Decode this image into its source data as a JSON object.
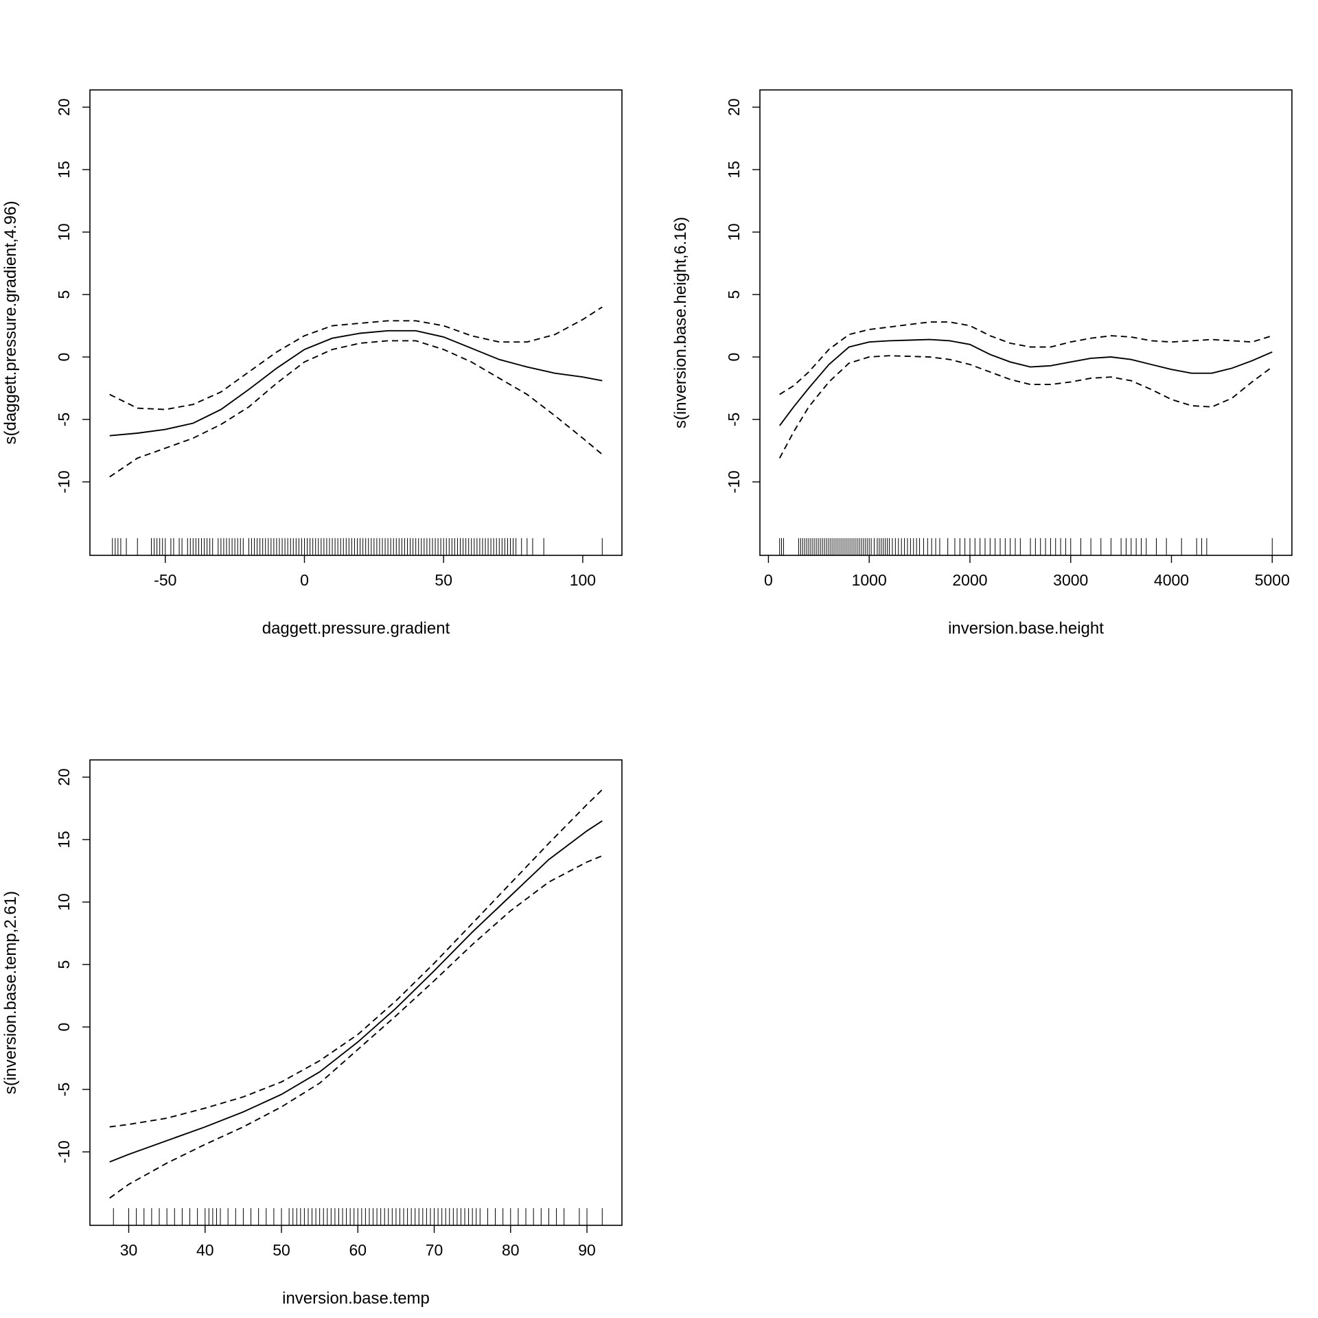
{
  "chart_data": [
    {
      "type": "line",
      "xlabel": "daggett.pressure.gradient",
      "ylabel": "s(daggett.pressure.gradient,4.96)",
      "xlim": [
        -70,
        107
      ],
      "ylim": [
        -14.5,
        20
      ],
      "xticks": [
        -50,
        0,
        50,
        100
      ],
      "xtick_labels": [
        "-50",
        "0",
        "50",
        "100"
      ],
      "yticks": [
        -10,
        -5,
        0,
        5,
        10,
        15,
        20
      ],
      "ytick_labels": [
        "-10",
        "-5",
        "0",
        "5",
        "10",
        "15",
        "20"
      ],
      "grid": false,
      "series": [
        {
          "style": "solid",
          "x": [
            -70,
            -60,
            -50,
            -40,
            -30,
            -20,
            -10,
            0,
            10,
            20,
            30,
            40,
            50,
            60,
            70,
            80,
            90,
            100,
            107
          ],
          "y": [
            -6.3,
            -6.1,
            -5.8,
            -5.3,
            -4.2,
            -2.6,
            -0.9,
            0.6,
            1.5,
            1.9,
            2.1,
            2.1,
            1.6,
            0.7,
            -0.2,
            -0.8,
            -1.3,
            -1.6,
            -1.9
          ]
        },
        {
          "style": "dashed",
          "x": [
            -70,
            -60,
            -50,
            -40,
            -30,
            -20,
            -10,
            0,
            10,
            20,
            30,
            40,
            50,
            60,
            70,
            80,
            90,
            100,
            107
          ],
          "y": [
            -3.0,
            -4.1,
            -4.2,
            -3.8,
            -2.8,
            -1.2,
            0.4,
            1.7,
            2.5,
            2.7,
            2.9,
            2.9,
            2.5,
            1.7,
            1.2,
            1.2,
            1.8,
            3.0,
            4.0
          ]
        },
        {
          "style": "dashed",
          "x": [
            -70,
            -60,
            -50,
            -40,
            -30,
            -20,
            -10,
            0,
            10,
            20,
            30,
            40,
            50,
            60,
            70,
            80,
            90,
            100,
            107
          ],
          "y": [
            -9.6,
            -8.1,
            -7.3,
            -6.5,
            -5.4,
            -4.0,
            -2.1,
            -0.4,
            0.6,
            1.1,
            1.3,
            1.3,
            0.6,
            -0.4,
            -1.7,
            -3.0,
            -4.7,
            -6.5,
            -7.8
          ]
        }
      ],
      "rug": [
        -69,
        -68,
        -67,
        -66,
        -64,
        -60,
        -55,
        -54,
        -53,
        -52,
        -51,
        -50,
        -48,
        -47,
        -45,
        -44,
        -42,
        -41,
        -40,
        -39,
        -38,
        -37,
        -36,
        -35,
        -34,
        -33,
        -31,
        -30,
        -29,
        -28,
        -27,
        -26,
        -25,
        -24,
        -23,
        -22,
        -20,
        -19,
        -18,
        -17,
        -16,
        -15,
        -14,
        -13,
        -12,
        -11,
        -10,
        -9,
        -8,
        -7,
        -6,
        -5,
        -4,
        -3,
        -2,
        -1,
        0,
        1,
        2,
        3,
        4,
        5,
        6,
        7,
        8,
        9,
        10,
        11,
        12,
        13,
        14,
        15,
        16,
        17,
        18,
        19,
        20,
        21,
        22,
        23,
        24,
        25,
        26,
        27,
        28,
        29,
        30,
        31,
        32,
        33,
        34,
        35,
        36,
        37,
        38,
        39,
        40,
        41,
        42,
        43,
        44,
        45,
        46,
        47,
        48,
        49,
        50,
        51,
        52,
        53,
        54,
        55,
        56,
        57,
        58,
        59,
        60,
        61,
        62,
        63,
        64,
        65,
        66,
        67,
        68,
        69,
        70,
        71,
        72,
        73,
        74,
        75,
        76,
        78,
        80,
        82,
        86,
        107
      ]
    },
    {
      "type": "line",
      "xlabel": "inversion.base.height",
      "ylabel": "s(inversion.base.height,6.16)",
      "xlim": [
        111,
        5000
      ],
      "ylim": [
        -14.5,
        20
      ],
      "xticks": [
        0,
        1000,
        2000,
        3000,
        4000,
        5000
      ],
      "xtick_labels": [
        "0",
        "1000",
        "2000",
        "3000",
        "4000",
        "5000"
      ],
      "yticks": [
        -10,
        -5,
        0,
        5,
        10,
        15,
        20
      ],
      "ytick_labels": [
        "-10",
        "-5",
        "0",
        "5",
        "10",
        "15",
        "20"
      ],
      "grid": false,
      "series": [
        {
          "style": "solid",
          "x": [
            111,
            250,
            400,
            600,
            800,
            1000,
            1200,
            1400,
            1600,
            1800,
            2000,
            2200,
            2400,
            2600,
            2800,
            3000,
            3200,
            3400,
            3600,
            3800,
            4000,
            4200,
            4400,
            4600,
            4800,
            5000
          ],
          "y": [
            -5.5,
            -4.0,
            -2.5,
            -0.6,
            0.8,
            1.2,
            1.3,
            1.35,
            1.4,
            1.3,
            1.0,
            0.2,
            -0.4,
            -0.8,
            -0.7,
            -0.4,
            -0.1,
            0.0,
            -0.2,
            -0.6,
            -1.0,
            -1.3,
            -1.3,
            -0.9,
            -0.3,
            0.4
          ]
        },
        {
          "style": "dashed",
          "x": [
            111,
            250,
            400,
            600,
            800,
            1000,
            1200,
            1400,
            1600,
            1800,
            2000,
            2200,
            2400,
            2600,
            2800,
            3000,
            3200,
            3400,
            3600,
            3800,
            4000,
            4200,
            4400,
            4600,
            4800,
            5000
          ],
          "y": [
            -3.0,
            -2.3,
            -1.2,
            0.6,
            1.8,
            2.2,
            2.4,
            2.6,
            2.8,
            2.8,
            2.5,
            1.7,
            1.1,
            0.8,
            0.8,
            1.2,
            1.5,
            1.7,
            1.6,
            1.3,
            1.2,
            1.3,
            1.4,
            1.3,
            1.2,
            1.7
          ]
        },
        {
          "style": "dashed",
          "x": [
            111,
            250,
            400,
            600,
            800,
            1000,
            1200,
            1400,
            1600,
            1800,
            2000,
            2200,
            2400,
            2600,
            2800,
            3000,
            3200,
            3400,
            3600,
            3800,
            4000,
            4200,
            4400,
            4600,
            4800,
            5000
          ],
          "y": [
            -8.1,
            -6.0,
            -4.0,
            -2.0,
            -0.5,
            0.0,
            0.1,
            0.05,
            0.0,
            -0.2,
            -0.6,
            -1.2,
            -1.8,
            -2.2,
            -2.2,
            -2.0,
            -1.7,
            -1.6,
            -1.9,
            -2.6,
            -3.4,
            -3.9,
            -4.0,
            -3.3,
            -2.0,
            -0.8
          ]
        }
      ],
      "rug": [
        111,
        130,
        150,
        300,
        320,
        340,
        360,
        380,
        400,
        420,
        440,
        460,
        480,
        500,
        520,
        540,
        560,
        580,
        600,
        620,
        640,
        660,
        680,
        700,
        720,
        740,
        760,
        780,
        800,
        820,
        840,
        860,
        880,
        900,
        920,
        940,
        960,
        980,
        1000,
        1020,
        1050,
        1080,
        1100,
        1120,
        1140,
        1160,
        1180,
        1200,
        1230,
        1260,
        1290,
        1320,
        1350,
        1380,
        1410,
        1440,
        1470,
        1500,
        1540,
        1580,
        1620,
        1660,
        1700,
        1780,
        1850,
        1900,
        1950,
        2000,
        2050,
        2100,
        2150,
        2200,
        2250,
        2300,
        2350,
        2400,
        2450,
        2500,
        2600,
        2650,
        2700,
        2750,
        2800,
        2850,
        2900,
        2950,
        3000,
        3100,
        3200,
        3300,
        3400,
        3500,
        3550,
        3600,
        3650,
        3700,
        3750,
        3850,
        3950,
        4100,
        4250,
        4300,
        4350,
        5000
      ]
    },
    {
      "type": "line",
      "xlabel": "inversion.base.temp",
      "ylabel": "s(inversion.base.temp,2.61)",
      "xlim": [
        27.5,
        92
      ],
      "ylim": [
        -14.5,
        20
      ],
      "xticks": [
        30,
        40,
        50,
        60,
        70,
        80,
        90
      ],
      "xtick_labels": [
        "30",
        "40",
        "50",
        "60",
        "70",
        "80",
        "90"
      ],
      "yticks": [
        -10,
        -5,
        0,
        5,
        10,
        15,
        20
      ],
      "ytick_labels": [
        "-10",
        "-5",
        "0",
        "5",
        "10",
        "15",
        "20"
      ],
      "grid": false,
      "series": [
        {
          "style": "solid",
          "x": [
            27.5,
            30,
            35,
            40,
            45,
            50,
            55,
            60,
            65,
            70,
            75,
            80,
            85,
            90,
            92
          ],
          "y": [
            -10.8,
            -10.2,
            -9.1,
            -8.0,
            -6.8,
            -5.4,
            -3.6,
            -1.2,
            1.5,
            4.5,
            7.6,
            10.5,
            13.4,
            15.7,
            16.5
          ]
        },
        {
          "style": "dashed",
          "x": [
            27.5,
            30,
            35,
            40,
            45,
            50,
            55,
            60,
            65,
            70,
            75,
            80,
            85,
            90,
            92
          ],
          "y": [
            -8.0,
            -7.8,
            -7.3,
            -6.5,
            -5.6,
            -4.4,
            -2.7,
            -0.6,
            2.1,
            5.1,
            8.3,
            11.5,
            14.7,
            17.8,
            19.0
          ]
        },
        {
          "style": "dashed",
          "x": [
            27.5,
            30,
            35,
            40,
            45,
            50,
            55,
            60,
            65,
            70,
            75,
            80,
            85,
            90,
            92
          ],
          "y": [
            -13.7,
            -12.6,
            -10.9,
            -9.4,
            -8.0,
            -6.4,
            -4.5,
            -1.8,
            0.9,
            3.7,
            6.6,
            9.3,
            11.6,
            13.2,
            13.7
          ]
        }
      ],
      "rug": [
        28,
        30,
        31,
        32,
        33,
        34,
        35,
        36,
        37,
        38,
        39,
        40,
        40.5,
        41,
        41.5,
        42,
        43,
        44,
        45,
        46,
        47,
        48,
        49,
        50,
        51,
        51.5,
        52,
        52.5,
        53,
        53.5,
        54,
        54.5,
        55,
        55.5,
        56,
        56.5,
        57,
        57.5,
        58,
        58.5,
        59,
        59.5,
        60,
        60.5,
        61,
        61.5,
        62,
        62.5,
        63,
        63.5,
        64,
        64.5,
        65,
        65.5,
        66,
        66.5,
        67,
        67.5,
        68,
        68.5,
        69,
        69.5,
        70,
        70.5,
        71,
        71.5,
        72,
        72.5,
        73,
        73.5,
        74,
        74.5,
        75,
        75.5,
        76,
        77,
        78,
        79,
        80,
        81,
        82,
        83,
        84,
        85,
        86,
        87,
        89,
        90,
        92
      ]
    }
  ]
}
